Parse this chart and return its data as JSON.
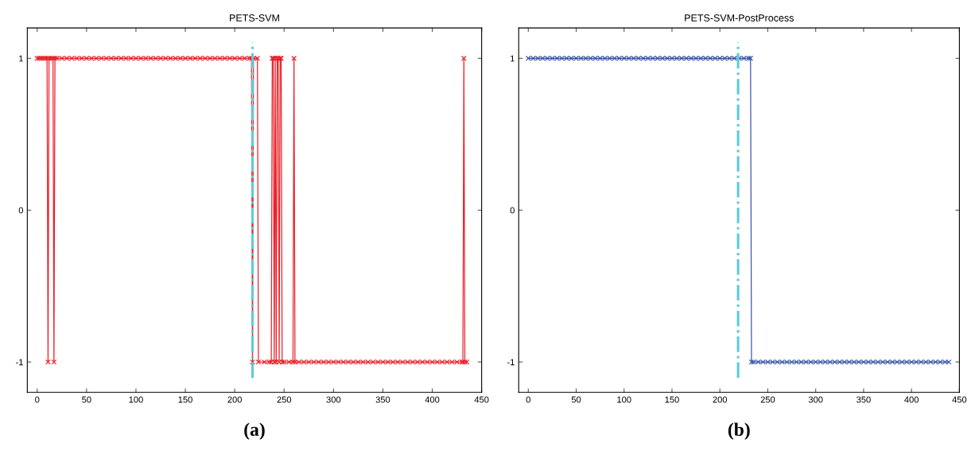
{
  "chart_data": [
    {
      "type": "line",
      "title": "PETS-SVM",
      "annotations": [
        "(a)"
      ],
      "xlim": [
        -10,
        450
      ],
      "ylim": [
        -1.2,
        1.2
      ],
      "xticks": [
        0,
        50,
        100,
        150,
        200,
        250,
        300,
        350,
        400,
        450
      ],
      "yticks": [
        -1,
        0,
        1
      ],
      "grid": false,
      "marker": "cross",
      "line_style": "solid",
      "ref_lines": [
        {
          "axis": "x",
          "value": 218,
          "color": "#5bcbd9",
          "line_style": "dashed"
        }
      ],
      "series": [
        {
          "color": "#e8222a",
          "x": [
            0,
            2,
            4,
            6,
            8,
            10,
            11,
            12,
            14,
            16,
            17,
            18,
            20,
            25,
            30,
            35,
            40,
            45,
            50,
            55,
            60,
            65,
            70,
            75,
            80,
            85,
            90,
            95,
            100,
            105,
            110,
            115,
            120,
            125,
            130,
            135,
            140,
            145,
            150,
            155,
            160,
            165,
            170,
            175,
            180,
            185,
            190,
            195,
            200,
            205,
            210,
            215,
            217,
            218,
            219,
            223,
            224,
            230,
            235,
            237,
            238,
            239,
            240,
            241,
            242,
            243,
            244,
            245,
            246,
            247,
            248,
            250,
            255,
            259,
            260,
            261,
            265,
            270,
            275,
            280,
            285,
            290,
            295,
            300,
            305,
            310,
            315,
            320,
            325,
            330,
            335,
            340,
            345,
            350,
            355,
            360,
            365,
            370,
            375,
            380,
            385,
            390,
            395,
            400,
            405,
            410,
            415,
            420,
            425,
            430,
            431,
            432,
            433,
            435
          ],
          "values": [
            1,
            1,
            1,
            1,
            1,
            1,
            -1,
            1,
            1,
            1,
            -1,
            1,
            1,
            1,
            1,
            1,
            1,
            1,
            1,
            1,
            1,
            1,
            1,
            1,
            1,
            1,
            1,
            1,
            1,
            1,
            1,
            1,
            1,
            1,
            1,
            1,
            1,
            1,
            1,
            1,
            1,
            1,
            1,
            1,
            1,
            1,
            1,
            1,
            1,
            1,
            1,
            1,
            1,
            -1,
            1,
            1,
            -1,
            -1,
            -1,
            -1,
            1,
            1,
            -1,
            1,
            -1,
            1,
            1,
            -1,
            1,
            1,
            -1,
            -1,
            -1,
            -1,
            1,
            -1,
            -1,
            -1,
            -1,
            -1,
            -1,
            -1,
            -1,
            -1,
            -1,
            -1,
            -1,
            -1,
            -1,
            -1,
            -1,
            -1,
            -1,
            -1,
            -1,
            -1,
            -1,
            -1,
            -1,
            -1,
            -1,
            -1,
            -1,
            -1,
            -1,
            -1,
            -1,
            -1,
            -1,
            -1,
            -1,
            1,
            -1,
            -1
          ]
        }
      ]
    },
    {
      "type": "line",
      "title": "PETS-SVM-PostProcess",
      "annotations": [
        "(b)"
      ],
      "xlim": [
        -10,
        450
      ],
      "ylim": [
        -1.2,
        1.2
      ],
      "xticks": [
        0,
        50,
        100,
        150,
        200,
        250,
        300,
        350,
        400,
        450
      ],
      "yticks": [
        -1,
        0,
        1
      ],
      "grid": false,
      "marker": "cross",
      "line_style": "solid",
      "ref_lines": [
        {
          "axis": "x",
          "value": 219,
          "color": "#5bcbd9",
          "line_style": "dashed"
        }
      ],
      "series": [
        {
          "color": "#3a58a8",
          "x": [
            0,
            5,
            10,
            15,
            20,
            25,
            30,
            35,
            40,
            45,
            50,
            55,
            60,
            65,
            70,
            75,
            80,
            85,
            90,
            95,
            100,
            105,
            110,
            115,
            120,
            125,
            130,
            135,
            140,
            145,
            150,
            155,
            160,
            165,
            170,
            175,
            180,
            185,
            190,
            195,
            200,
            205,
            210,
            215,
            220,
            225,
            230,
            232,
            233,
            235,
            240,
            245,
            250,
            255,
            260,
            265,
            270,
            275,
            280,
            285,
            290,
            295,
            300,
            305,
            310,
            315,
            320,
            325,
            330,
            335,
            340,
            345,
            350,
            355,
            360,
            365,
            370,
            375,
            380,
            385,
            390,
            395,
            400,
            405,
            410,
            415,
            420,
            425,
            430,
            435,
            439
          ],
          "values": [
            1,
            1,
            1,
            1,
            1,
            1,
            1,
            1,
            1,
            1,
            1,
            1,
            1,
            1,
            1,
            1,
            1,
            1,
            1,
            1,
            1,
            1,
            1,
            1,
            1,
            1,
            1,
            1,
            1,
            1,
            1,
            1,
            1,
            1,
            1,
            1,
            1,
            1,
            1,
            1,
            1,
            1,
            1,
            1,
            1,
            1,
            1,
            1,
            -1,
            -1,
            -1,
            -1,
            -1,
            -1,
            -1,
            -1,
            -1,
            -1,
            -1,
            -1,
            -1,
            -1,
            -1,
            -1,
            -1,
            -1,
            -1,
            -1,
            -1,
            -1,
            -1,
            -1,
            -1,
            -1,
            -1,
            -1,
            -1,
            -1,
            -1,
            -1,
            -1,
            -1,
            -1,
            -1,
            -1,
            -1,
            -1,
            -1,
            -1,
            -1,
            -1
          ]
        }
      ]
    }
  ]
}
